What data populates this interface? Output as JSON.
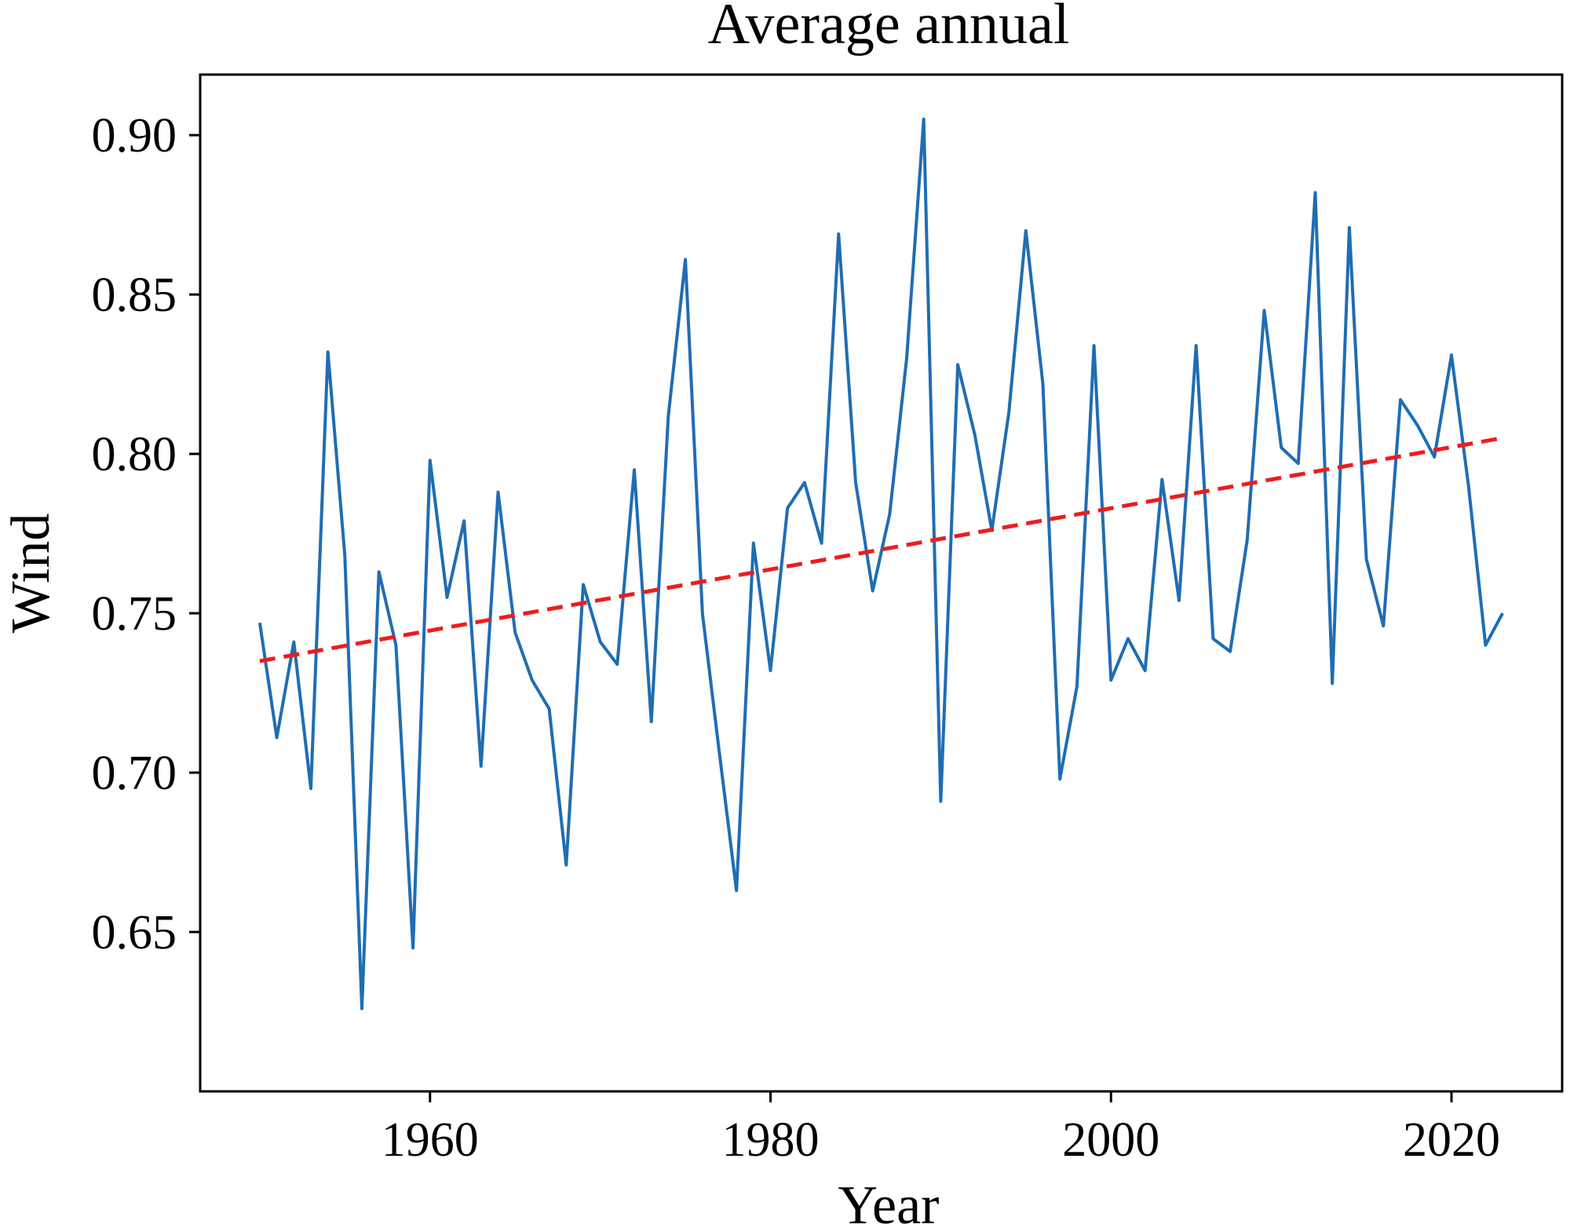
{
  "chart_data": {
    "type": "line",
    "title": "Average annual",
    "xlabel": "Year",
    "ylabel": "Wind",
    "xlim": [
      1946.5,
      2026.5
    ],
    "ylim": [
      0.6,
      0.919
    ],
    "x_ticks": [
      1960,
      1980,
      2000,
      2020
    ],
    "x_tick_labels": [
      "1960",
      "1980",
      "2000",
      "2020"
    ],
    "y_ticks": [
      0.65,
      0.7,
      0.75,
      0.8,
      0.85,
      0.9
    ],
    "y_tick_labels": [
      "0.65",
      "0.70",
      "0.75",
      "0.80",
      "0.85",
      "0.90"
    ],
    "grid": false,
    "series": [
      {
        "name": "Wind",
        "style": "solid",
        "color": "#1f6db3",
        "x": [
          1950,
          1951,
          1952,
          1953,
          1954,
          1955,
          1956,
          1957,
          1958,
          1959,
          1960,
          1961,
          1962,
          1963,
          1964,
          1965,
          1966,
          1967,
          1968,
          1969,
          1970,
          1971,
          1972,
          1973,
          1974,
          1975,
          1976,
          1977,
          1978,
          1979,
          1980,
          1981,
          1982,
          1983,
          1984,
          1985,
          1986,
          1987,
          1988,
          1989,
          1990,
          1991,
          1992,
          1993,
          1994,
          1995,
          1996,
          1997,
          1998,
          1999,
          2000,
          2001,
          2002,
          2003,
          2004,
          2005,
          2006,
          2007,
          2008,
          2009,
          2010,
          2011,
          2012,
          2013,
          2014,
          2015,
          2016,
          2017,
          2018,
          2019,
          2020,
          2021,
          2022,
          2023
        ],
        "values": [
          0.747,
          0.711,
          0.741,
          0.695,
          0.832,
          0.768,
          0.626,
          0.763,
          0.74,
          0.645,
          0.798,
          0.755,
          0.779,
          0.702,
          0.788,
          0.744,
          0.729,
          0.72,
          0.671,
          0.759,
          0.741,
          0.734,
          0.795,
          0.716,
          0.812,
          0.861,
          0.75,
          0.706,
          0.663,
          0.772,
          0.732,
          0.783,
          0.791,
          0.772,
          0.869,
          0.791,
          0.757,
          0.781,
          0.83,
          0.905,
          0.691,
          0.828,
          0.806,
          0.776,
          0.813,
          0.87,
          0.822,
          0.698,
          0.727,
          0.834,
          0.729,
          0.742,
          0.732,
          0.792,
          0.754,
          0.834,
          0.742,
          0.738,
          0.773,
          0.845,
          0.802,
          0.797,
          0.882,
          0.728,
          0.871,
          0.767,
          0.746,
          0.817,
          0.809,
          0.799,
          0.831,
          0.79,
          0.74,
          0.75
        ]
      },
      {
        "name": "Trend",
        "style": "dashed",
        "color": "#ee1c1c",
        "x": [
          1950,
          2023
        ],
        "values": [
          0.735,
          0.805
        ]
      }
    ]
  }
}
